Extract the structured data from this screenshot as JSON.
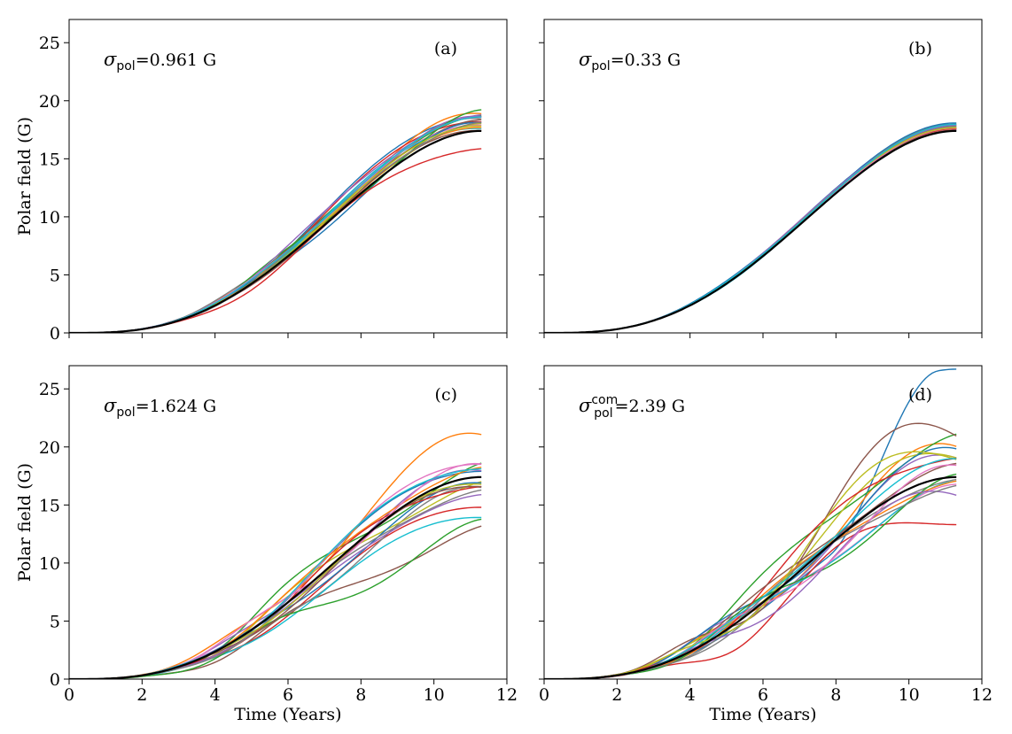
{
  "chart_data": [
    {
      "panel": "(a)",
      "type": "line",
      "annotation": {
        "symbol": "σ",
        "sub": "pol",
        "sup": "",
        "value": "=0.961 G"
      },
      "xlabel": "",
      "ylabel": "Polar field (G)",
      "xlim": [
        0,
        12
      ],
      "ylim": [
        0,
        27
      ],
      "xticks": [
        0,
        2,
        4,
        6,
        8,
        10,
        12
      ],
      "xtick_labels_shown": false,
      "yticks": [
        0,
        5,
        10,
        15,
        20,
        25
      ],
      "mean_end": 17.4,
      "ensemble_spread": 0.961,
      "ensemble_end_values": [
        18.9,
        18.7,
        18.6,
        18.5,
        18.4,
        18.3,
        18.2,
        18.1,
        18.0,
        17.9,
        17.8,
        17.7,
        18.6,
        16.3,
        18.8,
        17.6,
        18.4,
        18.2,
        17.9,
        18.5
      ],
      "ensemble_stretch": [
        0.1,
        -0.1,
        0.0,
        0.15,
        -0.15,
        0.05,
        -0.05,
        0.12,
        -0.08,
        0.2,
        -0.2,
        0.0,
        -0.25,
        0.08,
        0.1,
        -0.03,
        0.06,
        -0.12,
        0.03,
        0.02
      ],
      "ensemble_wiggle": [
        0.3,
        -0.4,
        0.2,
        -0.3,
        0.4,
        -0.2,
        0.3,
        -0.5,
        0.2,
        -0.3,
        0.4,
        0.1,
        -0.7,
        0.5,
        0.3,
        -0.2,
        0.2,
        -0.3,
        0.1,
        -0.1
      ]
    },
    {
      "panel": "(b)",
      "type": "line",
      "annotation": {
        "symbol": "σ",
        "sub": "pol",
        "sup": "",
        "value": "=0.33 G"
      },
      "xlabel": "",
      "ylabel": "",
      "xlim": [
        0,
        12
      ],
      "ylim": [
        0,
        27
      ],
      "xticks": [
        0,
        2,
        4,
        6,
        8,
        10,
        12
      ],
      "xtick_labels_shown": false,
      "yticks": [
        0,
        5,
        10,
        15,
        20,
        25
      ],
      "ytick_labels_shown": false,
      "mean_end": 17.4,
      "ensemble_spread": 0.33,
      "ensemble_end_values": [
        17.8,
        17.9,
        17.6,
        17.7,
        17.5,
        17.8,
        17.6,
        17.9,
        17.7,
        17.5,
        18.0,
        17.6,
        17.8,
        17.7,
        17.9,
        17.5,
        17.6,
        17.8,
        17.7,
        17.9
      ],
      "ensemble_stretch": [
        0.04,
        -0.04,
        0.02,
        -0.03,
        0.05,
        -0.02,
        0.03,
        -0.05,
        0.02,
        -0.03,
        0.04,
        0.01,
        -0.02,
        0.03,
        0.02,
        -0.01,
        0.03,
        -0.02,
        0.01,
        -0.03
      ],
      "ensemble_wiggle": [
        0.1,
        -0.1,
        0.05,
        -0.08,
        0.1,
        -0.05,
        0.08,
        -0.12,
        0.05,
        -0.08,
        0.1,
        0.03,
        -0.06,
        0.09,
        0.05,
        -0.04,
        0.06,
        -0.05,
        0.02,
        -0.07
      ]
    },
    {
      "panel": "(c)",
      "type": "line",
      "annotation": {
        "symbol": "σ",
        "sub": "pol",
        "sup": "",
        "value": "=1.624 G"
      },
      "xlabel": "Time (Years)",
      "ylabel": "Polar field (G)",
      "xlim": [
        0,
        12
      ],
      "ylim": [
        0,
        27
      ],
      "xticks": [
        0,
        2,
        4,
        6,
        8,
        10,
        12
      ],
      "yticks": [
        0,
        5,
        10,
        15,
        20,
        25
      ],
      "mean_end": 17.4,
      "ensemble_spread": 1.624,
      "ensemble_end_values": [
        18.4,
        20.7,
        18.0,
        15.2,
        17.6,
        12.8,
        18.9,
        16.1,
        16.8,
        14.2,
        16.5,
        18.2,
        12.7,
        17.2,
        15.9,
        16.9,
        17.8,
        16.4,
        17.0,
        18.6
      ],
      "ensemble_stretch": [
        0.1,
        -0.2,
        0.25,
        -0.1,
        0.15,
        -0.15,
        0.05,
        -0.25,
        0.2,
        0.0,
        -0.05,
        0.12,
        -0.3,
        0.08,
        0.02,
        -0.08,
        0.18,
        -0.12,
        0.05,
        0.1
      ],
      "ensemble_wiggle": [
        0.5,
        -0.8,
        1.2,
        -0.4,
        0.6,
        -1.0,
        0.4,
        -0.6,
        0.9,
        -0.3,
        0.5,
        -0.5,
        -1.2,
        0.7,
        0.3,
        -0.4,
        0.8,
        -0.6,
        0.3,
        0.5
      ]
    },
    {
      "panel": "(d)",
      "type": "line",
      "annotation": {
        "symbol": "σ",
        "sub": "pol",
        "sup": "com",
        "value": "=2.39 G"
      },
      "xlabel": "Time (Years)",
      "ylabel": "",
      "xlim": [
        0,
        12
      ],
      "ylim": [
        0,
        27
      ],
      "xticks": [
        0,
        2,
        4,
        6,
        8,
        10,
        12
      ],
      "yticks": [
        0,
        5,
        10,
        15,
        20,
        25
      ],
      "ytick_labels_shown": false,
      "mean_end": 17.4,
      "ensemble_spread": 2.39,
      "ensemble_end_values": [
        26.7,
        19.5,
        20.6,
        14.8,
        18.3,
        21.7,
        16.0,
        17.6,
        19.3,
        16.3,
        18.9,
        17.0,
        16.5,
        19.8,
        15.8,
        18.0,
        17.4,
        16.8,
        20.0,
        18.6
      ],
      "ensemble_stretch": [
        0.4,
        -0.3,
        0.2,
        -0.3,
        0.15,
        -0.1,
        0.1,
        -0.4,
        0.25,
        -0.15,
        0.05,
        0.2,
        -0.2,
        0.1,
        -0.05,
        0.3,
        -0.25,
        0.08,
        0.12,
        -0.08
      ],
      "ensemble_wiggle": [
        0.0,
        -1.2,
        1.0,
        -1.5,
        1.3,
        2.0,
        -0.8,
        0.6,
        -1.0,
        0.8,
        1.2,
        -0.6,
        -1.3,
        0.9,
        -1.0,
        0.7,
        1.1,
        -0.7,
        1.5,
        -0.4
      ]
    }
  ],
  "colors": {
    "mean": "#000000",
    "ensemble": [
      "#1f77b4",
      "#ff7f0e",
      "#2ca02c",
      "#d62728",
      "#9467bd",
      "#8c564b",
      "#e377c2",
      "#7f7f7f",
      "#bcbd22",
      "#17becf"
    ]
  }
}
